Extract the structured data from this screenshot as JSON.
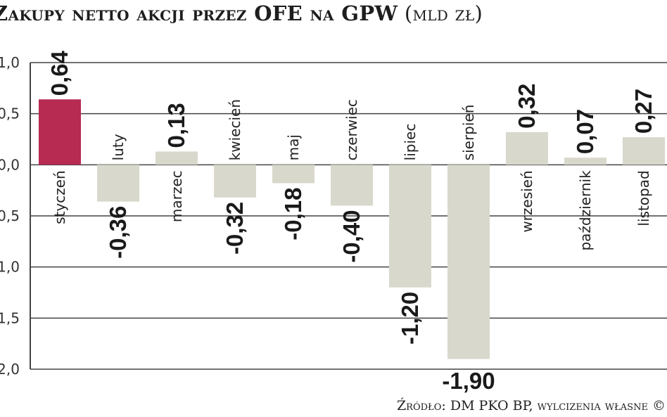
{
  "chart_data": {
    "type": "bar",
    "title": "Zakupy netto akcji przez OFE na GPW",
    "unit": "(mld zł)",
    "categories": [
      "styczeń",
      "luty",
      "marzec",
      "kwiecień",
      "maj",
      "czerwiec",
      "lipiec",
      "sierpień",
      "wrzesień",
      "październik",
      "listopad"
    ],
    "values": [
      0.64,
      -0.36,
      0.13,
      -0.32,
      -0.18,
      -0.4,
      -1.2,
      -1.9,
      0.32,
      0.07,
      0.27
    ],
    "value_labels": [
      "0,64",
      "-0,36",
      "0,13",
      "-0,32",
      "-0,18",
      "-0,40",
      "-1,20",
      "-1,90",
      "0,32",
      "0,07",
      "0,27"
    ],
    "ylim": [
      -2.0,
      1.0
    ],
    "yticks": [
      1.0,
      0.5,
      0.0,
      -0.5,
      -1.0,
      -1.5,
      -2.0
    ],
    "ytick_labels": [
      "1,0",
      "0,5",
      "0,0",
      "-0,5",
      "-1,0",
      "-1,5",
      "-2,0"
    ],
    "grid": true,
    "colors": {
      "highlight": "#b72a52",
      "bar": "#d9d8cc",
      "axis": "#444444"
    },
    "highlight_index": 0,
    "source": "Źródło: DM PKO BP, wylcizenia własne ©"
  }
}
